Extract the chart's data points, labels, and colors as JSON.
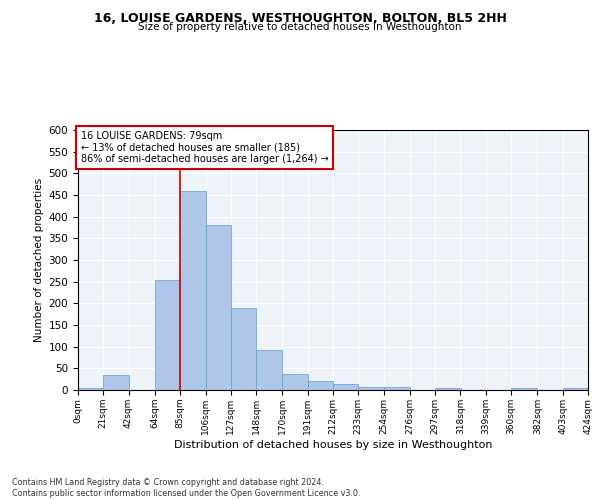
{
  "title": "16, LOUISE GARDENS, WESTHOUGHTON, BOLTON, BL5 2HH",
  "subtitle": "Size of property relative to detached houses in Westhoughton",
  "xlabel": "Distribution of detached houses by size in Westhoughton",
  "ylabel": "Number of detached properties",
  "footer_line1": "Contains HM Land Registry data © Crown copyright and database right 2024.",
  "footer_line2": "Contains public sector information licensed under the Open Government Licence v3.0.",
  "bin_edges": [
    0,
    21,
    42,
    64,
    85,
    106,
    127,
    148,
    170,
    191,
    212,
    233,
    254,
    276,
    297,
    318,
    339,
    360,
    382,
    403,
    424
  ],
  "bar_heights": [
    5,
    35,
    0,
    253,
    460,
    380,
    190,
    92,
    37,
    20,
    13,
    7,
    6,
    0,
    5,
    0,
    0,
    5,
    0,
    5
  ],
  "bar_color": "#aec6e8",
  "bar_edge_color": "#5a9fd4",
  "bg_color": "#eef3fa",
  "grid_color": "#ffffff",
  "vline_x": 85,
  "vline_color": "#cc0000",
  "annotation_text": "16 LOUISE GARDENS: 79sqm\n← 13% of detached houses are smaller (185)\n86% of semi-detached houses are larger (1,264) →",
  "annotation_box_color": "#cc0000",
  "ylim": [
    0,
    600
  ],
  "yticks": [
    0,
    50,
    100,
    150,
    200,
    250,
    300,
    350,
    400,
    450,
    500,
    550,
    600
  ],
  "tick_labels": [
    "0sqm",
    "21sqm",
    "42sqm",
    "64sqm",
    "85sqm",
    "106sqm",
    "127sqm",
    "148sqm",
    "170sqm",
    "191sqm",
    "212sqm",
    "233sqm",
    "254sqm",
    "276sqm",
    "297sqm",
    "318sqm",
    "339sqm",
    "360sqm",
    "382sqm",
    "403sqm",
    "424sqm"
  ]
}
